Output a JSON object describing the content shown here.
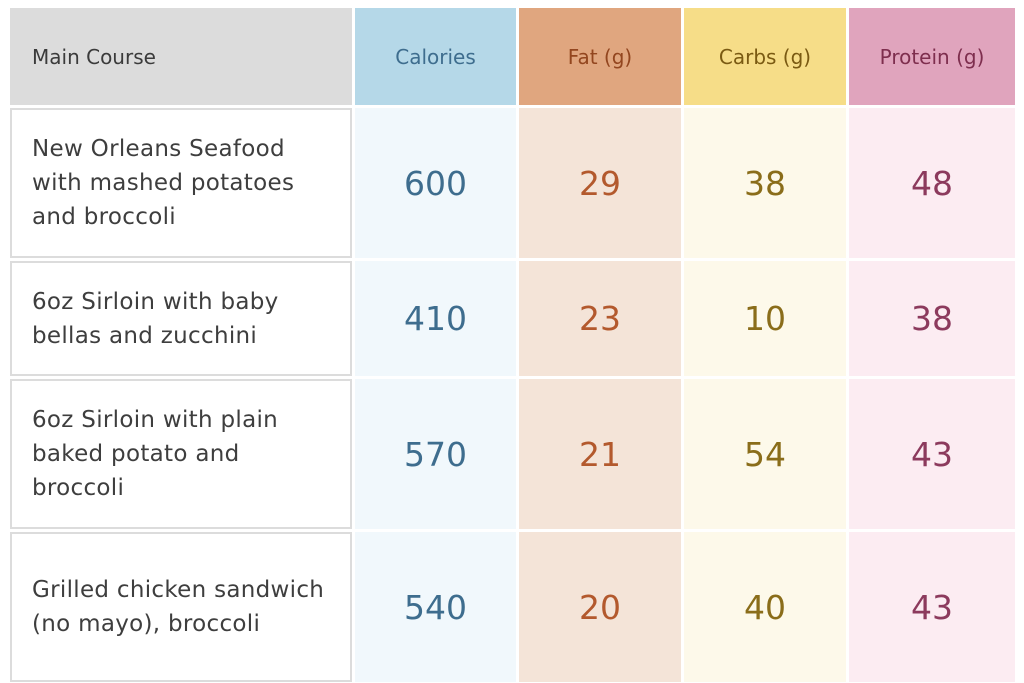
{
  "headers": {
    "main": "Main Course",
    "calories": "Calories",
    "fat": "Fat (g)",
    "carbs": "Carbs (g)",
    "protein": "Protein (g)"
  },
  "rows": [
    {
      "name": "New Orleans Seafood with mashed potatoes and broccoli",
      "calories": "600",
      "fat": "29",
      "carbs": "38",
      "protein": "48"
    },
    {
      "name": "6oz Sirloin with baby bellas and zucchini",
      "calories": "410",
      "fat": "23",
      "carbs": "10",
      "protein": "38"
    },
    {
      "name": "6oz Sirloin with plain baked potato and broccoli",
      "calories": "570",
      "fat": "21",
      "carbs": "54",
      "protein": "43"
    },
    {
      "name": "Grilled chicken sandwich (no mayo), broccoli",
      "calories": "540",
      "fat": "20",
      "carbs": "40",
      "protein": "43"
    }
  ],
  "colors": {
    "calories": "#b5d8e8",
    "fat": "#e0a67f",
    "carbs": "#f6dd88",
    "protein": "#e0a4bd",
    "main_header": "#dcdcdc"
  }
}
